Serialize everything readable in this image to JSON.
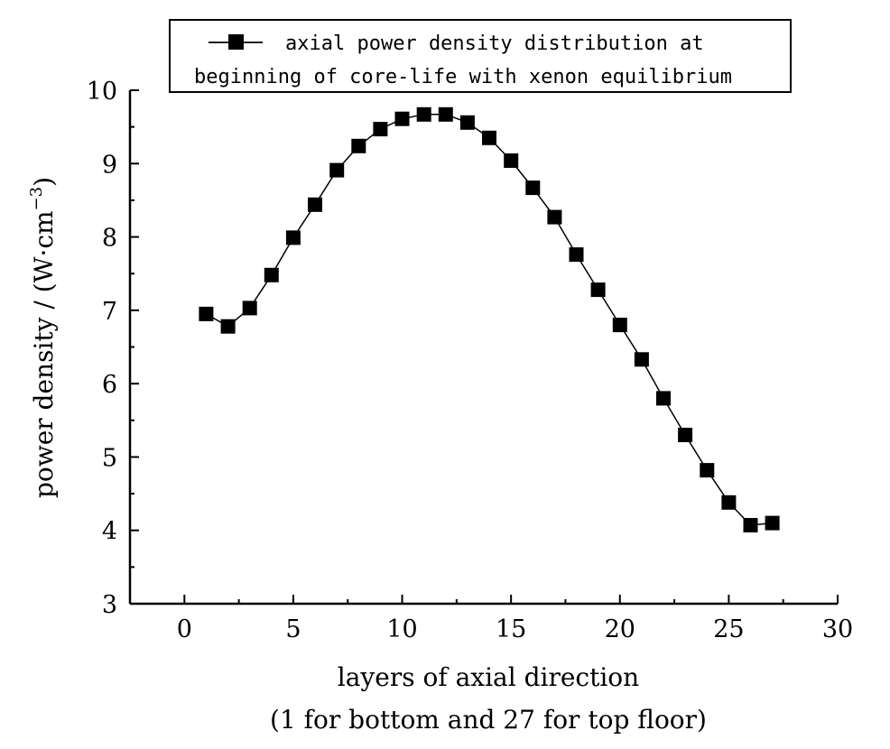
{
  "chart_data": {
    "type": "line",
    "legend": {
      "line1": "axial power density distribution at",
      "line2": "beginning of core-life with xenon equilibrium",
      "position": "top"
    },
    "xlabel": "layers of axial direction",
    "xlabel2": "(1 for bottom and 27 for top floor)",
    "ylabel": {
      "prefix": "power density / (W·cm",
      "sup": "−3",
      "suffix": ")"
    },
    "xlim": [
      -2.5,
      30
    ],
    "ylim": [
      3,
      10
    ],
    "xticks": [
      0,
      5,
      10,
      15,
      20,
      25,
      30
    ],
    "yticks": [
      3,
      4,
      5,
      6,
      7,
      8,
      9,
      10
    ],
    "xtick_labels": [
      "0",
      "5",
      "10",
      "15",
      "20",
      "25",
      "30"
    ],
    "ytick_labels": [
      "3",
      "4",
      "5",
      "6",
      "7",
      "8",
      "9",
      "10"
    ],
    "grid": false,
    "series": [
      {
        "name": "axial power density distribution at beginning of core-life with xenon equilibrium",
        "marker": "square",
        "color": "#000000",
        "x": [
          1,
          2,
          3,
          4,
          5,
          6,
          7,
          8,
          9,
          10,
          11,
          12,
          13,
          14,
          15,
          16,
          17,
          18,
          19,
          20,
          21,
          22,
          23,
          24,
          25,
          26,
          27
        ],
        "y": [
          6.95,
          6.78,
          7.03,
          7.48,
          7.99,
          8.44,
          8.91,
          9.24,
          9.47,
          9.61,
          9.67,
          9.67,
          9.56,
          9.35,
          9.04,
          8.67,
          8.27,
          7.76,
          7.28,
          6.8,
          6.33,
          5.8,
          5.3,
          4.82,
          4.38,
          4.07,
          4.1
        ]
      }
    ]
  }
}
